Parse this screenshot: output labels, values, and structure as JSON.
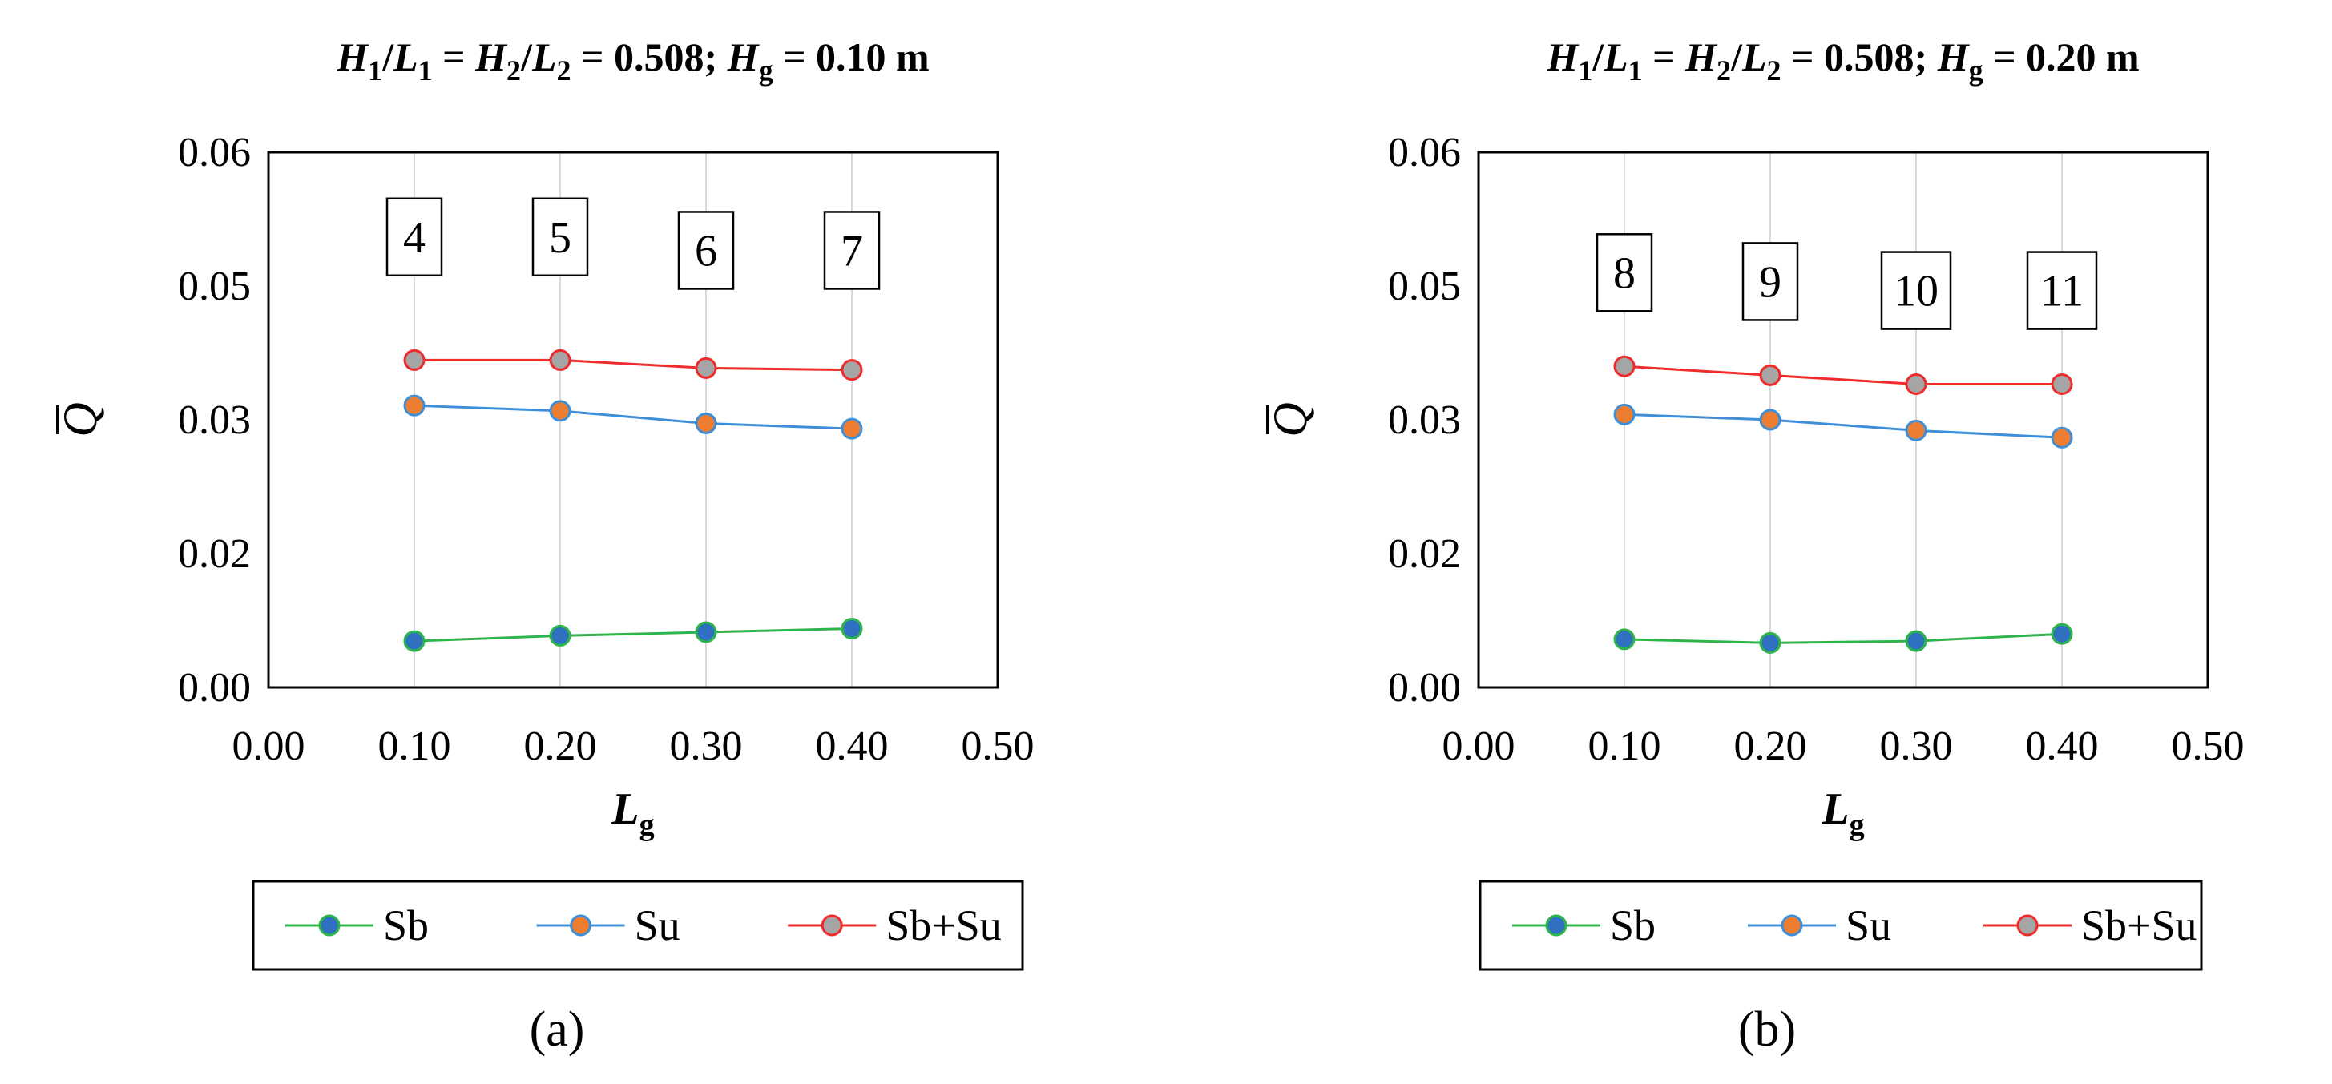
{
  "chart_data": [
    {
      "type": "line",
      "panel_label": "(a)",
      "title": {
        "h1": "H",
        "s1": "1",
        "l1": "L",
        "s2": "1",
        "h2": "H",
        "s3": "2",
        "l2": "L",
        "s4": "2",
        "value": " = 0.508; ",
        "hg": "H",
        "hg_sub": "g",
        "hg_val": " = 0.10 m",
        "text": "H1/L1 = H2/L2 = 0.508; Hg = 0.10 m"
      },
      "xlabel": {
        "main": "L",
        "sub": "g"
      },
      "ylabel": "Q",
      "xlim": [
        0,
        0.5
      ],
      "ylim": [
        0,
        0.06
      ],
      "x_ticks": [
        "0.00",
        "0.10",
        "0.20",
        "0.30",
        "0.40",
        "0.50"
      ],
      "y_ticks": [
        "0.00",
        "0.02",
        "0.03",
        "0.05",
        "0.06"
      ],
      "x_tick_values": [
        0,
        0.1,
        0.2,
        0.3,
        0.4,
        0.5
      ],
      "y_tick_values": [
        0,
        0.015,
        0.03,
        0.045,
        0.06
      ],
      "x": [
        0.1,
        0.2,
        0.3,
        0.4
      ],
      "series": [
        {
          "name": "Sb",
          "values": [
            0.0052,
            0.0058,
            0.0062,
            0.0066
          ],
          "line_color": "#2db54a",
          "marker_color": "#3070c0"
        },
        {
          "name": "Su",
          "values": [
            0.0316,
            0.031,
            0.0296,
            0.029
          ],
          "line_color": "#3d8fd9",
          "marker_color": "#ed7d31"
        },
        {
          "name": "Sb+Su",
          "values": [
            0.0367,
            0.0367,
            0.0358,
            0.0356
          ],
          "line_color": "#ef2b2b",
          "marker_color": "#a5a5a5"
        }
      ],
      "annotations": [
        {
          "text": "4",
          "x": 0.1,
          "y": 0.0505
        },
        {
          "text": "5",
          "x": 0.2,
          "y": 0.0505
        },
        {
          "text": "6",
          "x": 0.3,
          "y": 0.049
        },
        {
          "text": "7",
          "x": 0.4,
          "y": 0.049
        }
      ],
      "legend": "bottom",
      "grid": "vertical"
    },
    {
      "type": "line",
      "panel_label": "(b)",
      "title": {
        "h1": "H",
        "s1": "1",
        "l1": "L",
        "s2": "1",
        "h2": "H",
        "s3": "2",
        "l2": "L",
        "s4": "2",
        "value": " = 0.508; ",
        "hg": "H",
        "hg_sub": "g",
        "hg_val": " = 0.20 m",
        "text": "H1/L1 = H2/L2 = 0.508; Hg = 0.20 m"
      },
      "xlabel": {
        "main": "L",
        "sub": "g"
      },
      "ylabel": "Q",
      "xlim": [
        0,
        0.5
      ],
      "ylim": [
        0,
        0.06
      ],
      "x_ticks": [
        "0.00",
        "0.10",
        "0.20",
        "0.30",
        "0.40",
        "0.50"
      ],
      "y_ticks": [
        "0.00",
        "0.02",
        "0.03",
        "0.05",
        "0.06"
      ],
      "x_tick_values": [
        0,
        0.1,
        0.2,
        0.3,
        0.4,
        0.5
      ],
      "y_tick_values": [
        0,
        0.015,
        0.03,
        0.045,
        0.06
      ],
      "x": [
        0.1,
        0.2,
        0.3,
        0.4
      ],
      "series": [
        {
          "name": "Sb",
          "values": [
            0.0054,
            0.005,
            0.0052,
            0.006
          ],
          "line_color": "#2db54a",
          "marker_color": "#3070c0"
        },
        {
          "name": "Su",
          "values": [
            0.0306,
            0.03,
            0.0288,
            0.028
          ],
          "line_color": "#3d8fd9",
          "marker_color": "#ed7d31"
        },
        {
          "name": "Sb+Su",
          "values": [
            0.036,
            0.035,
            0.034,
            0.034
          ],
          "line_color": "#ef2b2b",
          "marker_color": "#a5a5a5"
        }
      ],
      "annotations": [
        {
          "text": "8",
          "x": 0.1,
          "y": 0.0465
        },
        {
          "text": "9",
          "x": 0.2,
          "y": 0.0455
        },
        {
          "text": "10",
          "x": 0.3,
          "y": 0.0445
        },
        {
          "text": "11",
          "x": 0.4,
          "y": 0.0445
        }
      ],
      "legend": "bottom",
      "grid": "vertical"
    }
  ]
}
